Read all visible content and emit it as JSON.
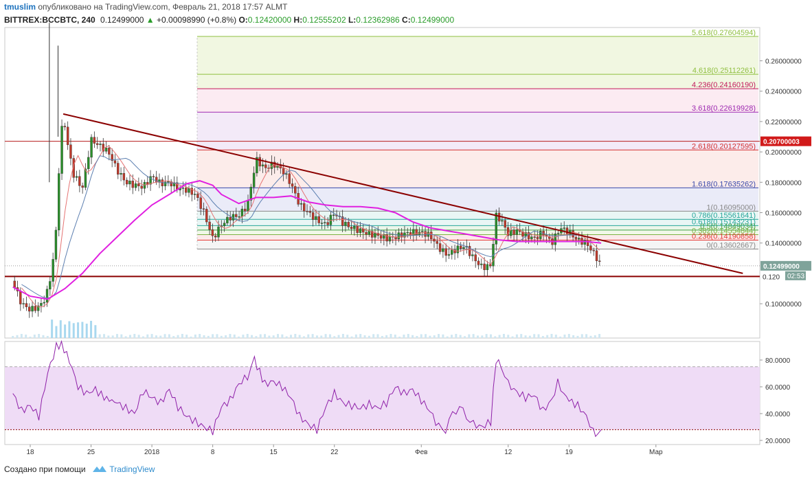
{
  "header": {
    "author": "tmuslim",
    "published_text": "опубликовано на TradingView.com, Февраль 21, 2018 17:57 ALMT",
    "symbol": "BITTREX:BCCBTC, 240",
    "last": "0.12499000",
    "change_arrow": "▲",
    "change": "+0.00098990 (+0.8%)",
    "o_label": "O:",
    "o_value": "0.12420000",
    "h_label": "H:",
    "h_value": "0.12555202",
    "l_label": "L:",
    "l_value": "0.12362986",
    "c_label": "C:",
    "c_value": "0.12499000"
  },
  "footer": {
    "created_with": "Создано при помощи",
    "brand": "TradingView"
  },
  "colors": {
    "candle_up": "#2a8f2a",
    "candle_down": "#c0392b",
    "trendline": "#8b0000",
    "ma_magenta": "#e020e0",
    "rsi_line": "#8e1fa8",
    "rsi_band": "#efdcf6",
    "price_badge": "#7fa39a",
    "red_badge": "#d11a1a"
  },
  "chart_data": [
    {
      "type": "candlestick",
      "title": "BITTREX:BCCBTC, 240",
      "x_ticks": [
        "18",
        "25",
        "2018",
        "8",
        "15",
        "22",
        "Фев",
        "12",
        "19",
        "Мар"
      ],
      "y_ticks": [
        "0.26000000",
        "0.24000000",
        "0.22000000",
        "0.20000000",
        "0.18000000",
        "0.16000000",
        "0.14000000",
        "0.10000000"
      ],
      "ylim": [
        0.08,
        0.28
      ],
      "price_series": [
        {
          "d": -2,
          "p": 0.115
        },
        {
          "d": -1.5,
          "p": 0.107
        },
        {
          "d": -1,
          "p": 0.1
        },
        {
          "d": 0,
          "p": 0.096
        },
        {
          "d": 1,
          "p": 0.098
        },
        {
          "d": 1.8,
          "p": 0.104
        },
        {
          "d": 2.5,
          "p": 0.122
        },
        {
          "d": 3,
          "p": 0.15
        },
        {
          "d": 3.4,
          "p": 0.2
        },
        {
          "d": 3.8,
          "p": 0.225
        },
        {
          "d": 4.3,
          "p": 0.205
        },
        {
          "d": 5,
          "p": 0.185
        },
        {
          "d": 6,
          "p": 0.176
        },
        {
          "d": 7,
          "p": 0.208
        },
        {
          "d": 8,
          "p": 0.204
        },
        {
          "d": 9,
          "p": 0.2
        },
        {
          "d": 10,
          "p": 0.188
        },
        {
          "d": 11,
          "p": 0.18
        },
        {
          "d": 12,
          "p": 0.178
        },
        {
          "d": 13,
          "p": 0.177
        },
        {
          "d": 14,
          "p": 0.184
        },
        {
          "d": 15,
          "p": 0.179
        },
        {
          "d": 16,
          "p": 0.18
        },
        {
          "d": 17,
          "p": 0.176
        },
        {
          "d": 18,
          "p": 0.175
        },
        {
          "d": 19,
          "p": 0.172
        },
        {
          "d": 20,
          "p": 0.16
        },
        {
          "d": 21,
          "p": 0.143
        },
        {
          "d": 22,
          "p": 0.152
        },
        {
          "d": 23,
          "p": 0.157
        },
        {
          "d": 24,
          "p": 0.158
        },
        {
          "d": 25,
          "p": 0.165
        },
        {
          "d": 26,
          "p": 0.195
        },
        {
          "d": 26.5,
          "p": 0.192
        },
        {
          "d": 27,
          "p": 0.189
        },
        {
          "d": 28,
          "p": 0.192
        },
        {
          "d": 29,
          "p": 0.188
        },
        {
          "d": 30,
          "p": 0.179
        },
        {
          "d": 31,
          "p": 0.165
        },
        {
          "d": 32,
          "p": 0.16
        },
        {
          "d": 33,
          "p": 0.155
        },
        {
          "d": 34,
          "p": 0.152
        },
        {
          "d": 35,
          "p": 0.16
        },
        {
          "d": 36,
          "p": 0.153
        },
        {
          "d": 37,
          "p": 0.15
        },
        {
          "d": 38,
          "p": 0.148
        },
        {
          "d": 39,
          "p": 0.146
        },
        {
          "d": 40,
          "p": 0.145
        },
        {
          "d": 41,
          "p": 0.143
        },
        {
          "d": 42,
          "p": 0.144
        },
        {
          "d": 43,
          "p": 0.146
        },
        {
          "d": 44,
          "p": 0.147
        },
        {
          "d": 45,
          "p": 0.147
        },
        {
          "d": 46,
          "p": 0.145
        },
        {
          "d": 47,
          "p": 0.137
        },
        {
          "d": 48,
          "p": 0.132
        },
        {
          "d": 49,
          "p": 0.136
        },
        {
          "d": 50,
          "p": 0.138
        },
        {
          "d": 51,
          "p": 0.13
        },
        {
          "d": 52,
          "p": 0.124
        },
        {
          "d": 53,
          "p": 0.125
        },
        {
          "d": 53.6,
          "p": 0.158
        },
        {
          "d": 54.2,
          "p": 0.155
        },
        {
          "d": 55,
          "p": 0.146
        },
        {
          "d": 56,
          "p": 0.148
        },
        {
          "d": 57,
          "p": 0.145
        },
        {
          "d": 58,
          "p": 0.143
        },
        {
          "d": 59,
          "p": 0.147
        },
        {
          "d": 60,
          "p": 0.14
        },
        {
          "d": 61,
          "p": 0.15
        },
        {
          "d": 62,
          "p": 0.147
        },
        {
          "d": 63,
          "p": 0.142
        },
        {
          "d": 64,
          "p": 0.14
        },
        {
          "d": 65,
          "p": 0.132
        },
        {
          "d": 65.7,
          "p": 0.125
        }
      ],
      "pink_ma": [
        {
          "d": -2,
          "p": 0.111
        },
        {
          "d": 0,
          "p": 0.105
        },
        {
          "d": 2,
          "p": 0.103
        },
        {
          "d": 4,
          "p": 0.11
        },
        {
          "d": 6,
          "p": 0.12
        },
        {
          "d": 8,
          "p": 0.133
        },
        {
          "d": 10,
          "p": 0.144
        },
        {
          "d": 12,
          "p": 0.155
        },
        {
          "d": 14,
          "p": 0.165
        },
        {
          "d": 16,
          "p": 0.172
        },
        {
          "d": 18,
          "p": 0.179
        },
        {
          "d": 19.5,
          "p": 0.181
        },
        {
          "d": 21,
          "p": 0.178
        },
        {
          "d": 22,
          "p": 0.172
        },
        {
          "d": 24,
          "p": 0.166
        },
        {
          "d": 26,
          "p": 0.17
        },
        {
          "d": 28,
          "p": 0.17
        },
        {
          "d": 30,
          "p": 0.171
        },
        {
          "d": 32,
          "p": 0.167
        },
        {
          "d": 34,
          "p": 0.165
        },
        {
          "d": 36,
          "p": 0.164
        },
        {
          "d": 38,
          "p": 0.164
        },
        {
          "d": 40,
          "p": 0.163
        },
        {
          "d": 42,
          "p": 0.16
        },
        {
          "d": 44,
          "p": 0.154
        },
        {
          "d": 46,
          "p": 0.15
        },
        {
          "d": 48,
          "p": 0.148
        },
        {
          "d": 50,
          "p": 0.146
        },
        {
          "d": 52,
          "p": 0.144
        },
        {
          "d": 54,
          "p": 0.142
        },
        {
          "d": 56,
          "p": 0.141
        },
        {
          "d": 58,
          "p": 0.141
        },
        {
          "d": 60,
          "p": 0.141
        },
        {
          "d": 62,
          "p": 0.141
        },
        {
          "d": 64,
          "p": 0.141
        },
        {
          "d": 65.7,
          "p": 0.14
        }
      ],
      "trendline": [
        {
          "d": 3.8,
          "p": 0.225
        },
        {
          "d": 82,
          "p": 0.12
        }
      ],
      "support_price": 0.118,
      "resistance_price": 0.207,
      "fib_levels": [
        {
          "label": "5.618(0.27604594)",
          "price": 0.27604594,
          "color": "#8fbf3f"
        },
        {
          "label": "4.618(0.25112261)",
          "price": 0.25112261,
          "color": "#8fbf3f"
        },
        {
          "label": "4.236(0.24160190)",
          "price": 0.2416019,
          "color": "#c2185b"
        },
        {
          "label": "3.618(0.22619928)",
          "price": 0.22619928,
          "color": "#9c27b0"
        },
        {
          "label": "2.618(0.20127595)",
          "price": 0.20127595,
          "color": "#d32f2f"
        },
        {
          "label": "1.618(0.17635262)",
          "price": 0.17635262,
          "color": "#3949ab"
        },
        {
          "label": "1(0.16095000)",
          "price": 0.16095,
          "color": "#888888"
        },
        {
          "label": "0.786(0.15561641)",
          "price": 0.15561641,
          "color": "#26a69a"
        },
        {
          "label": "0.618(0.15143231)",
          "price": 0.15143231,
          "color": "#26a69a"
        },
        {
          "label": "0.5(0.14849034)",
          "price": 0.14849034,
          "color": "#43a047"
        },
        {
          "label": "0.382(0.14554844)",
          "price": 0.14554844,
          "color": "#7cb342"
        },
        {
          "label": "0.236(0.14190858)",
          "price": 0.14190858,
          "color": "#e53935"
        },
        {
          "label": "0(0.13602667)",
          "price": 0.13602667,
          "color": "#888888"
        }
      ],
      "price_labels": {
        "resistance": "0.20700003",
        "current": "0.12499000",
        "timer": "02:53",
        "support_partial": "0.120"
      }
    },
    {
      "type": "line",
      "title": "",
      "y_ticks": [
        "80.0000",
        "60.0000",
        "40.0000",
        "20.0000"
      ],
      "ylim": [
        17,
        95
      ],
      "band": [
        28,
        75
      ],
      "series": [
        {
          "d": -2,
          "v": 55
        },
        {
          "d": -1,
          "v": 42
        },
        {
          "d": 0,
          "v": 46
        },
        {
          "d": 1,
          "v": 38
        },
        {
          "d": 2,
          "v": 70
        },
        {
          "d": 3,
          "v": 90
        },
        {
          "d": 3.6,
          "v": 92
        },
        {
          "d": 4.5,
          "v": 80
        },
        {
          "d": 5.5,
          "v": 60
        },
        {
          "d": 6.5,
          "v": 55
        },
        {
          "d": 7.5,
          "v": 58
        },
        {
          "d": 8.5,
          "v": 52
        },
        {
          "d": 10,
          "v": 48
        },
        {
          "d": 11,
          "v": 44
        },
        {
          "d": 12,
          "v": 40
        },
        {
          "d": 13,
          "v": 57
        },
        {
          "d": 14,
          "v": 52
        },
        {
          "d": 15,
          "v": 48
        },
        {
          "d": 16,
          "v": 58
        },
        {
          "d": 17,
          "v": 45
        },
        {
          "d": 18,
          "v": 38
        },
        {
          "d": 19,
          "v": 34
        },
        {
          "d": 20,
          "v": 30
        },
        {
          "d": 21,
          "v": 27
        },
        {
          "d": 22,
          "v": 45
        },
        {
          "d": 23,
          "v": 50
        },
        {
          "d": 24,
          "v": 62
        },
        {
          "d": 25,
          "v": 68
        },
        {
          "d": 25.8,
          "v": 80
        },
        {
          "d": 27,
          "v": 62
        },
        {
          "d": 28,
          "v": 64
        },
        {
          "d": 29,
          "v": 60
        },
        {
          "d": 30,
          "v": 52
        },
        {
          "d": 31,
          "v": 38
        },
        {
          "d": 32,
          "v": 32
        },
        {
          "d": 33,
          "v": 28
        },
        {
          "d": 34,
          "v": 45
        },
        {
          "d": 35,
          "v": 55
        },
        {
          "d": 36,
          "v": 48
        },
        {
          "d": 37,
          "v": 46
        },
        {
          "d": 38,
          "v": 44
        },
        {
          "d": 39,
          "v": 47
        },
        {
          "d": 40,
          "v": 44
        },
        {
          "d": 41,
          "v": 48
        },
        {
          "d": 42,
          "v": 60
        },
        {
          "d": 43,
          "v": 55
        },
        {
          "d": 44,
          "v": 58
        },
        {
          "d": 45,
          "v": 50
        },
        {
          "d": 46,
          "v": 42
        },
        {
          "d": 47,
          "v": 30
        },
        {
          "d": 47.8,
          "v": 28
        },
        {
          "d": 48.6,
          "v": 40
        },
        {
          "d": 49.4,
          "v": 45
        },
        {
          "d": 50.2,
          "v": 38
        },
        {
          "d": 51,
          "v": 32
        },
        {
          "d": 52,
          "v": 30
        },
        {
          "d": 53,
          "v": 34
        },
        {
          "d": 53.6,
          "v": 80
        },
        {
          "d": 54.2,
          "v": 76
        },
        {
          "d": 55,
          "v": 62
        },
        {
          "d": 56,
          "v": 56
        },
        {
          "d": 57,
          "v": 52
        },
        {
          "d": 58,
          "v": 54
        },
        {
          "d": 59,
          "v": 42
        },
        {
          "d": 60,
          "v": 50
        },
        {
          "d": 60.7,
          "v": 63
        },
        {
          "d": 61.4,
          "v": 55
        },
        {
          "d": 62,
          "v": 50
        },
        {
          "d": 63,
          "v": 46
        },
        {
          "d": 64,
          "v": 38
        },
        {
          "d": 64.8,
          "v": 28
        },
        {
          "d": 65.3,
          "v": 22
        },
        {
          "d": 65.7,
          "v": 28
        }
      ]
    }
  ]
}
